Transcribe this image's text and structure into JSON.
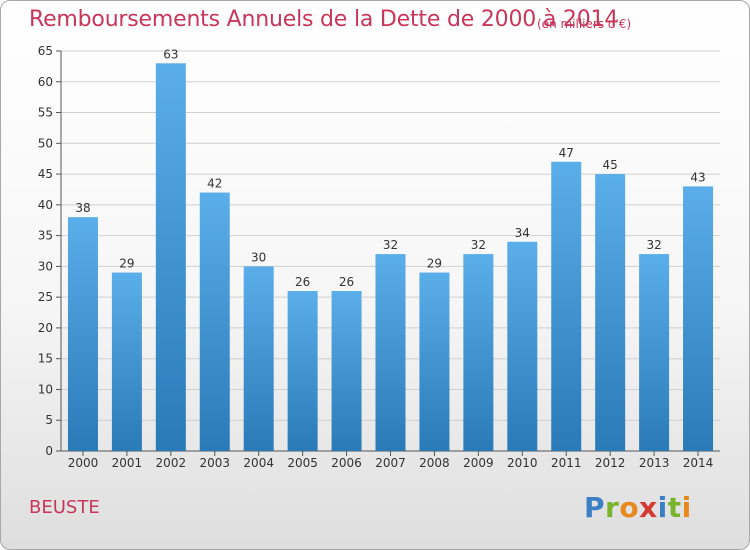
{
  "title": "Remboursements Annuels de la Dette de 2000 à 2014",
  "subtitle": "(en milliers d'€)",
  "commune": "BEUSTE",
  "logo": {
    "letters": [
      {
        "ch": "P",
        "color": "c1"
      },
      {
        "ch": "r",
        "color": "c2"
      },
      {
        "ch": "o",
        "color": "c0"
      },
      {
        "ch": "x",
        "color": "c3"
      },
      {
        "ch": "i",
        "color": "c1"
      },
      {
        "ch": "t",
        "color": "c2"
      },
      {
        "ch": "i",
        "color": "c0"
      }
    ]
  },
  "chart_data": {
    "type": "bar",
    "categories": [
      "2000",
      "2001",
      "2002",
      "2003",
      "2004",
      "2005",
      "2006",
      "2007",
      "2008",
      "2009",
      "2010",
      "2011",
      "2012",
      "2013",
      "2014"
    ],
    "values": [
      38,
      29,
      63,
      42,
      30,
      26,
      26,
      32,
      29,
      32,
      34,
      47,
      45,
      32,
      43
    ],
    "ylim": [
      0,
      65
    ],
    "yticks": [
      0,
      5,
      10,
      15,
      20,
      25,
      30,
      35,
      40,
      45,
      50,
      55,
      60,
      65
    ],
    "grid": true,
    "bar_color_top": "#5aaeea",
    "bar_color_bottom": "#2a7ab8"
  }
}
